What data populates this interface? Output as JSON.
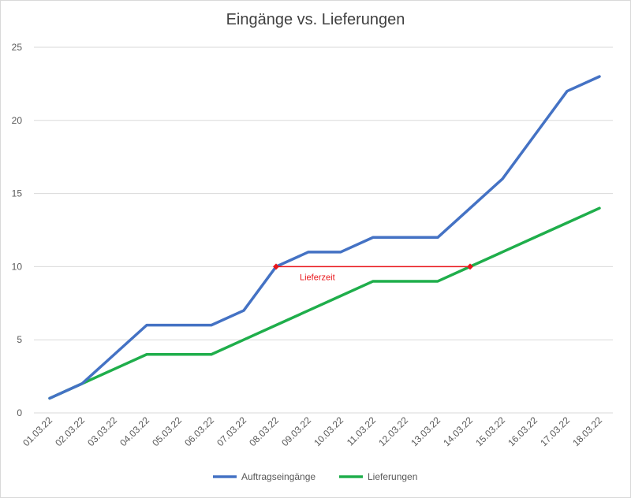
{
  "chart_data": {
    "type": "line",
    "title": "Eingänge vs. Lieferungen",
    "xlabel": "",
    "ylabel": "",
    "categories": [
      "01.03.22",
      "02.03.22",
      "03.03.22",
      "04.03.22",
      "05.03.22",
      "06.03.22",
      "07.03.22",
      "08.03.22",
      "09.03.22",
      "10.03.22",
      "11.03.22",
      "12.03.22",
      "13.03.22",
      "14.03.22",
      "15.03.22",
      "16.03.22",
      "17.03.22",
      "18.03.22"
    ],
    "ylim": [
      0,
      25
    ],
    "yticks": [
      0,
      5,
      10,
      15,
      20,
      25
    ],
    "grid": true,
    "legend_position": "bottom",
    "series": [
      {
        "name": "Auftragseingänge",
        "color": "#4472C4",
        "values": [
          1,
          2,
          4,
          6,
          6,
          6,
          7,
          10,
          11,
          11,
          12,
          12,
          12,
          14,
          16,
          19,
          22,
          23
        ]
      },
      {
        "name": "Lieferungen",
        "color": "#1FAE4B",
        "values": [
          1,
          2,
          3,
          4,
          4,
          4,
          5,
          6,
          7,
          8,
          9,
          9,
          9,
          10,
          11,
          12,
          13,
          14
        ]
      }
    ],
    "annotations": [
      {
        "label": "Lieferzeit",
        "color": "#E8161B",
        "from_category": "08.03.22",
        "to_category": "14.03.22",
        "y": 10
      }
    ]
  }
}
